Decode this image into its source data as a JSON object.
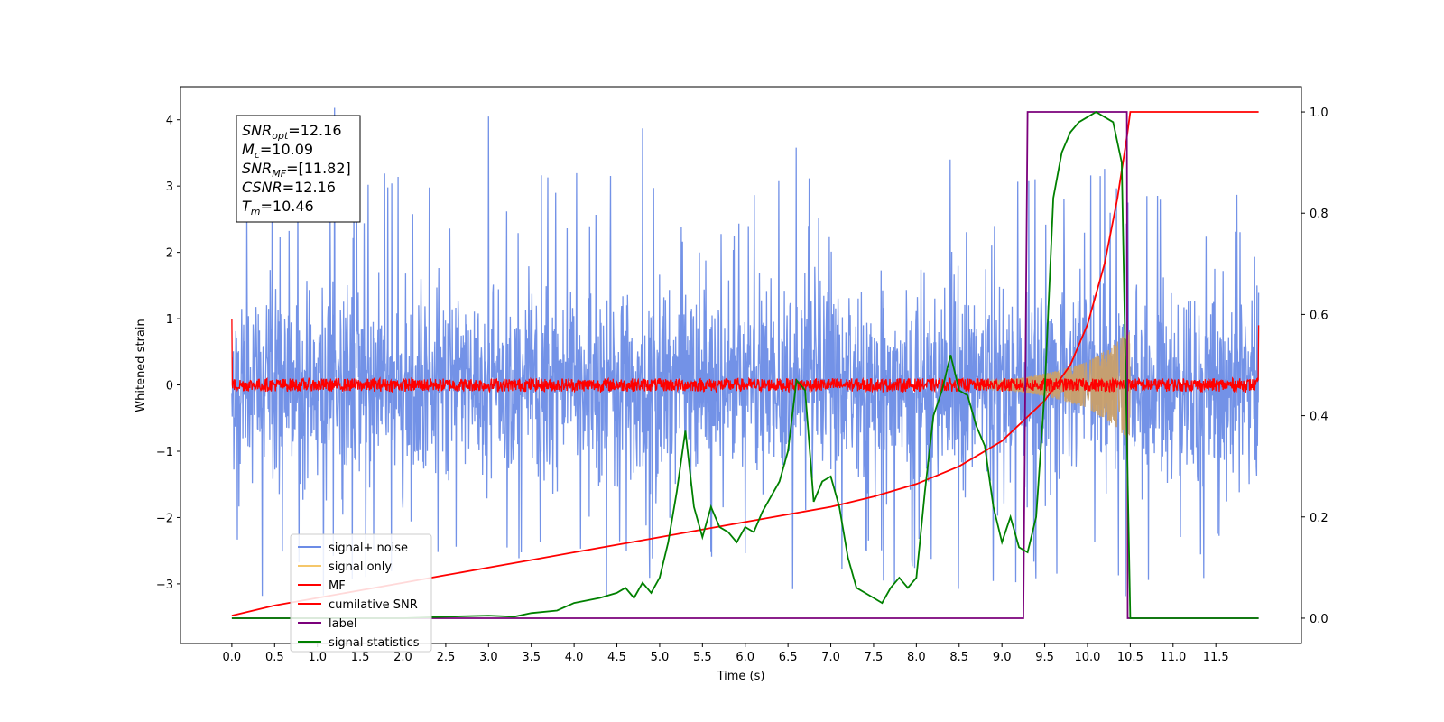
{
  "chart_data": {
    "type": "line",
    "title": "",
    "xlabel": "Time (s)",
    "ylabel": "Whitened strain",
    "y2label": "",
    "xlim": [
      -0.6,
      12.5
    ],
    "ylim": [
      -3.9,
      4.5
    ],
    "y2lim": [
      -0.05,
      1.05
    ],
    "xticks": [
      0.0,
      0.5,
      1.0,
      1.5,
      2.0,
      2.5,
      3.0,
      3.5,
      4.0,
      4.5,
      5.0,
      5.5,
      6.0,
      6.5,
      7.0,
      7.5,
      8.0,
      8.5,
      9.0,
      9.5,
      10.0,
      10.5,
      11.0,
      11.5
    ],
    "xtick_labels": [
      "0.0",
      "0.5",
      "1.0",
      "1.5",
      "2.0",
      "2.5",
      "3.0",
      "3.5",
      "4.0",
      "4.5",
      "5.0",
      "5.5",
      "6.0",
      "6.5",
      "7.0",
      "7.5",
      "8.0",
      "8.5",
      "9.0",
      "9.5",
      "10.0",
      "10.5",
      "11.0",
      "11.5"
    ],
    "yticks": [
      -3,
      -2,
      -1,
      0,
      1,
      2,
      3,
      4
    ],
    "ytick_labels": [
      "−3",
      "−2",
      "−1",
      "0",
      "1",
      "2",
      "3",
      "4"
    ],
    "y2ticks": [
      0.0,
      0.2,
      0.4,
      0.6,
      0.8,
      1.0
    ],
    "y2tick_labels": [
      "0.0",
      "0.2",
      "0.4",
      "0.6",
      "0.8",
      "1.0"
    ],
    "grid": false,
    "legend_position": "lower-left",
    "annotation": {
      "lines": [
        {
          "base": "SNR",
          "sub": "opt",
          "rest": "=12.16"
        },
        {
          "base": "M",
          "sub": "c",
          "rest": "=10.09"
        },
        {
          "base": "SNR",
          "sub": "MF",
          "rest": "=[11.82]"
        },
        {
          "base": "CSNR",
          "sub": "",
          "rest": "=12.16"
        },
        {
          "base": "T",
          "sub": "m",
          "rest": "=10.46"
        }
      ]
    },
    "series": [
      {
        "name": "signal+ noise",
        "color": "#6c8ce6",
        "axis": "left",
        "kind": "noise",
        "x_range": [
          0.0,
          12.0
        ],
        "amplitude": 2.5,
        "peak_values": [
          4.18,
          4.05,
          3.87,
          3.58,
          3.4,
          3.26
        ]
      },
      {
        "name": "signal only",
        "color": "#f5c76a",
        "axis": "left",
        "kind": "chirp",
        "x_range": [
          8.7,
          10.5
        ],
        "envelope": [
          [
            8.7,
            0.05
          ],
          [
            9.2,
            0.1
          ],
          [
            9.6,
            0.2
          ],
          [
            10.0,
            0.35
          ],
          [
            10.3,
            0.6
          ],
          [
            10.46,
            0.8
          ]
        ]
      },
      {
        "name": "MF",
        "color": "#ff0000",
        "axis": "left",
        "kind": "noise-small",
        "x_range": [
          0.0,
          12.0
        ],
        "amplitude": 0.1
      },
      {
        "name": "cumilative SNR",
        "color": "#ff0000",
        "axis": "right",
        "x": [
          0.0,
          0.5,
          1.0,
          1.5,
          2.0,
          2.5,
          3.0,
          3.5,
          4.0,
          4.5,
          5.0,
          5.5,
          6.0,
          6.5,
          7.0,
          7.5,
          8.0,
          8.5,
          9.0,
          9.5,
          9.8,
          10.0,
          10.2,
          10.35,
          10.46,
          10.5,
          12.0
        ],
        "y": [
          0.005,
          0.025,
          0.04,
          0.055,
          0.07,
          0.085,
          0.1,
          0.115,
          0.13,
          0.145,
          0.16,
          0.175,
          0.19,
          0.205,
          0.22,
          0.24,
          0.265,
          0.3,
          0.35,
          0.43,
          0.5,
          0.58,
          0.7,
          0.83,
          0.95,
          1.0,
          1.0
        ]
      },
      {
        "name": "label",
        "color": "#7b007b",
        "axis": "right",
        "x": [
          0.0,
          9.25,
          9.3,
          10.46,
          10.47,
          12.0
        ],
        "y": [
          0.0,
          0.0,
          1.0,
          1.0,
          0.0,
          0.0
        ]
      },
      {
        "name": "signal statistics",
        "color": "#008000",
        "axis": "right",
        "x": [
          0.0,
          1.0,
          2.0,
          2.5,
          3.0,
          3.3,
          3.5,
          3.8,
          4.0,
          4.3,
          4.5,
          4.6,
          4.7,
          4.8,
          4.9,
          5.0,
          5.1,
          5.2,
          5.3,
          5.4,
          5.5,
          5.6,
          5.7,
          5.8,
          5.9,
          6.0,
          6.1,
          6.2,
          6.3,
          6.4,
          6.5,
          6.6,
          6.7,
          6.8,
          6.9,
          7.0,
          7.1,
          7.2,
          7.3,
          7.4,
          7.5,
          7.6,
          7.7,
          7.8,
          7.9,
          8.0,
          8.1,
          8.2,
          8.3,
          8.4,
          8.5,
          8.6,
          8.7,
          8.8,
          8.9,
          9.0,
          9.1,
          9.2,
          9.3,
          9.4,
          9.5,
          9.6,
          9.7,
          9.8,
          9.9,
          10.0,
          10.1,
          10.2,
          10.3,
          10.4,
          10.5,
          10.6,
          11.0,
          11.5,
          12.0
        ],
        "y": [
          0.0,
          0.0,
          0.0,
          0.003,
          0.005,
          0.003,
          0.01,
          0.015,
          0.03,
          0.04,
          0.05,
          0.06,
          0.04,
          0.07,
          0.05,
          0.08,
          0.15,
          0.25,
          0.37,
          0.22,
          0.16,
          0.22,
          0.18,
          0.17,
          0.15,
          0.18,
          0.17,
          0.21,
          0.24,
          0.27,
          0.33,
          0.47,
          0.45,
          0.23,
          0.27,
          0.28,
          0.22,
          0.12,
          0.06,
          0.05,
          0.04,
          0.03,
          0.06,
          0.08,
          0.06,
          0.08,
          0.25,
          0.4,
          0.45,
          0.52,
          0.45,
          0.44,
          0.38,
          0.34,
          0.22,
          0.15,
          0.2,
          0.14,
          0.13,
          0.2,
          0.45,
          0.83,
          0.92,
          0.96,
          0.98,
          0.99,
          1.0,
          0.99,
          0.98,
          0.9,
          0.0,
          0.0,
          0.0,
          0.0,
          0.0
        ]
      }
    ]
  }
}
